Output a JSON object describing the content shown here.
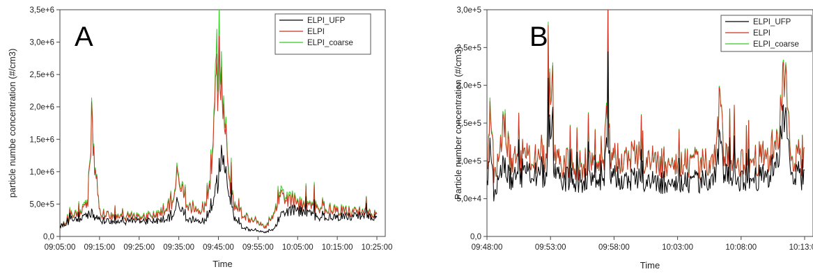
{
  "chart_data": [
    {
      "type": "line",
      "panel_label": "A",
      "xlabel": "Time",
      "ylabel": "particle numbe concentration (#/cm3)",
      "x_tick_labels": [
        "09:05:00",
        "09:15:00",
        "09:25:00",
        "09:35:00",
        "09:45:00",
        "09:55:00",
        "10:05:00",
        "10:15:00",
        "10:25:00"
      ],
      "y_tick_labels": [
        "0,0",
        "5,0e+5",
        "1,0e+6",
        "1,5e+6",
        "2,0e+6",
        "2,5e+6",
        "3,0e+6",
        "3,5e+6"
      ],
      "ylim": [
        0,
        3500000
      ],
      "xlim_minutes": [
        0,
        80
      ],
      "legend": [
        "ELPI_UFP",
        "ELPI",
        "ELPI_coarse"
      ],
      "legend_position": "top-right",
      "colors": {
        "ELPI_UFP": "#000000",
        "ELPI": "#cc3322",
        "ELPI_coarse": "#33cc22"
      },
      "series": [
        {
          "name": "ELPI_UFP",
          "x": [
            0,
            3,
            7,
            8,
            10,
            15,
            20,
            25,
            28,
            30,
            32,
            35,
            37,
            38,
            39,
            40,
            41,
            42,
            43,
            44,
            46,
            48,
            50,
            52,
            54,
            55,
            57,
            60,
            63,
            65,
            70,
            75,
            80
          ],
          "values": [
            150000,
            250000,
            300000,
            350000,
            250000,
            220000,
            250000,
            230000,
            300000,
            500000,
            250000,
            220000,
            250000,
            400000,
            600000,
            900000,
            1400000,
            1000000,
            600000,
            300000,
            150000,
            100000,
            80000,
            70000,
            100000,
            250000,
            400000,
            400000,
            350000,
            300000,
            300000,
            320000,
            300000
          ]
        },
        {
          "name": "ELPI",
          "x": [
            0,
            3,
            7,
            8,
            10,
            15,
            20,
            25,
            28,
            30,
            32,
            35,
            37,
            38,
            39,
            40,
            41,
            42,
            43,
            44,
            46,
            48,
            50,
            52,
            54,
            55,
            57,
            60,
            63,
            65,
            70,
            75,
            80
          ],
          "values": [
            150000,
            300000,
            450000,
            1700000,
            350000,
            300000,
            300000,
            320000,
            500000,
            900000,
            450000,
            350000,
            500000,
            800000,
            1900000,
            2600000,
            2300000,
            1600000,
            800000,
            500000,
            350000,
            250000,
            200000,
            150000,
            300000,
            600000,
            600000,
            500000,
            450000,
            450000,
            400000,
            380000,
            350000
          ]
        },
        {
          "name": "ELPI_coarse",
          "x": [
            0,
            3,
            7,
            8,
            10,
            15,
            20,
            25,
            28,
            30,
            32,
            35,
            37,
            38,
            39,
            40,
            41,
            42,
            43,
            44,
            46,
            48,
            50,
            52,
            54,
            55,
            57,
            60,
            63,
            65,
            70,
            75,
            80
          ],
          "values": [
            150000,
            320000,
            480000,
            1750000,
            360000,
            310000,
            320000,
            340000,
            520000,
            950000,
            470000,
            360000,
            520000,
            850000,
            2000000,
            3050000,
            2450000,
            1700000,
            850000,
            520000,
            360000,
            260000,
            210000,
            160000,
            320000,
            650000,
            650000,
            520000,
            470000,
            470000,
            420000,
            390000,
            360000
          ]
        }
      ]
    },
    {
      "type": "line",
      "panel_label": "B",
      "xlabel": "Time",
      "ylabel": "Particle number concentration (#/cm3)",
      "x_tick_labels": [
        "09:48:00",
        "09:53:00",
        "09:58:00",
        "10:03:00",
        "10:08:00",
        "10:13:00"
      ],
      "y_tick_labels": [
        "0,0",
        "5,0e+4",
        "1,0e+5",
        "1,5e+5",
        "2,0e+5",
        "2,5e+5",
        "3,0e+5"
      ],
      "ylim": [
        0,
        300000
      ],
      "xlim_minutes": [
        0,
        27
      ],
      "legend": [
        "ELPI_UFP",
        "ELPI",
        "ELPI_coarse"
      ],
      "legend_position": "top-right",
      "colors": {
        "ELPI_UFP": "#000000",
        "ELPI": "#cc3322",
        "ELPI_coarse": "#33cc22"
      },
      "series": [
        {
          "name": "ELPI_UFP",
          "x": [
            0,
            0.3,
            0.6,
            1,
            1.5,
            2,
            3,
            4,
            5,
            5.4,
            5.8,
            7,
            9,
            10,
            10.2,
            10.5,
            12,
            14,
            16,
            17,
            18,
            19.5,
            19.8,
            20.2,
            22,
            24,
            24.9,
            25.3,
            25.8,
            27
          ],
          "values": [
            70000,
            120000,
            55000,
            80000,
            95000,
            75000,
            80000,
            85000,
            78000,
            155000,
            80000,
            75000,
            73000,
            80000,
            155000,
            78000,
            75000,
            72000,
            70000,
            70000,
            74000,
            76000,
            135000,
            78000,
            75000,
            80000,
            120000,
            160000,
            90000,
            75000
          ]
        },
        {
          "name": "ELPI",
          "x": [
            0,
            0.3,
            0.6,
            1,
            1.5,
            2,
            3,
            4,
            5,
            5.4,
            5.8,
            7,
            9,
            10,
            10.2,
            10.5,
            12,
            14,
            16,
            17,
            18,
            19.5,
            19.8,
            20.2,
            22,
            24,
            24.9,
            25.3,
            25.8,
            27
          ],
          "values": [
            90000,
            165000,
            85000,
            105000,
            150000,
            100000,
            100000,
            105000,
            100000,
            210000,
            100000,
            95000,
            95000,
            105000,
            205000,
            100000,
            105000,
            100000,
            95000,
            95000,
            98000,
            100000,
            190000,
            100000,
            100000,
            105000,
            150000,
            215000,
            110000,
            100000
          ]
        },
        {
          "name": "ELPI_coarse",
          "x": [
            0,
            0.3,
            0.6,
            1,
            1.5,
            2,
            3,
            4,
            5,
            5.4,
            5.8,
            7,
            9,
            10,
            10.2,
            10.5,
            12,
            14,
            16,
            17,
            18,
            19.5,
            19.8,
            20.2,
            22,
            24,
            24.9,
            25.3,
            25.8,
            27
          ],
          "values": [
            90000,
            170000,
            85000,
            105000,
            155000,
            100000,
            100000,
            106000,
            100000,
            215000,
            100000,
            96000,
            96000,
            106000,
            210000,
            100000,
            106000,
            100000,
            96000,
            96000,
            99000,
            100000,
            192000,
            100000,
            100000,
            106000,
            152000,
            218000,
            112000,
            100000
          ]
        }
      ]
    }
  ]
}
